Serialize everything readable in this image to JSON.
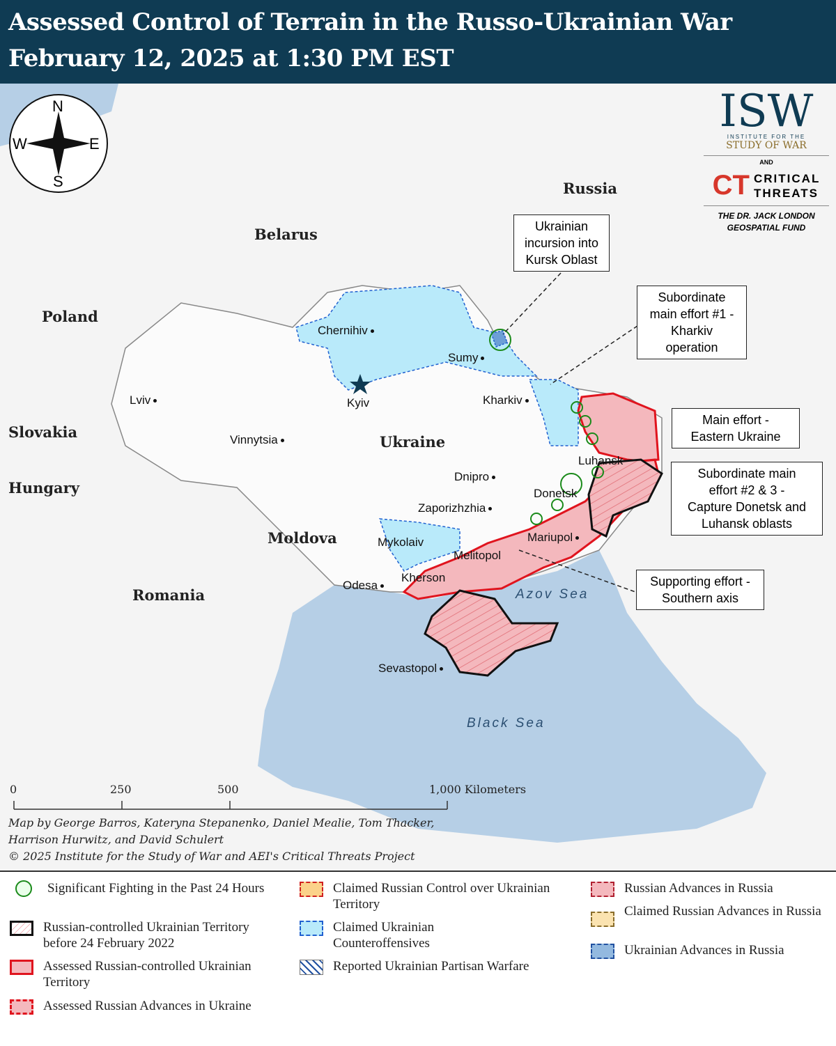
{
  "header": {
    "title": "Assessed Control of Terrain in the Russo-Ukrainian War",
    "date": "February 12, 2025 at 1:30 PM EST"
  },
  "compass": {
    "n": "N",
    "s": "S",
    "e": "E",
    "w": "W"
  },
  "countries": [
    "Russia",
    "Belarus",
    "Poland",
    "Slovakia",
    "Hungary",
    "Moldova",
    "Romania",
    "Ukraine"
  ],
  "cities": [
    "Chernihiv",
    "Kyiv",
    "Sumy",
    "Kharkiv",
    "Lviv",
    "Vinnytsia",
    "Dnipro",
    "Luhansk",
    "Donetsk",
    "Zaporizhzhia",
    "Mariupol",
    "Mykolaiv",
    "Melitopol",
    "Kherson",
    "Odesa",
    "Sevastopol"
  ],
  "seas": {
    "azov": "Azov Sea",
    "black": "Black Sea"
  },
  "callouts": [
    {
      "lines": [
        "Ukrainian",
        "incursion into",
        "Kursk Oblast"
      ]
    },
    {
      "lines": [
        "Subordinate",
        "main effort #1 -",
        "Kharkiv",
        "operation"
      ]
    },
    {
      "lines": [
        "Main effort -",
        "Eastern Ukraine"
      ]
    },
    {
      "lines": [
        "Subordinate main",
        "effort #2 & 3 -",
        "Capture Donetsk and",
        "Luhansk oblasts"
      ]
    },
    {
      "lines": [
        "Supporting effort -",
        "Southern axis"
      ]
    }
  ],
  "scale": {
    "ticks": [
      "0",
      "250",
      "500",
      "1,000 Kilometers"
    ]
  },
  "credits": [
    "Map by George Barros, Kateryna Stepanenko, Daniel Mealie, Tom Thacker,",
    "Harrison Hurwitz, and David Schulert",
    "© 2025 Institute for the Study of War and AEI's Critical Threats Project"
  ],
  "logo": {
    "isw": "ISW",
    "isw_sub1": "INSTITUTE FOR THE",
    "isw_sub2": "STUDY OF WAR",
    "and": "AND",
    "ct1": "CRITICAL",
    "ct2": "THREATS",
    "fund1": "THE DR. JACK LONDON",
    "fund2": "GEOSPATIAL FUND"
  },
  "colors": {
    "header": "#0f3b53",
    "russian_control": "#f4b8bd",
    "russian_border": "#e0141e",
    "ukraine_claimed": "#b9eafa",
    "sea": "#b6cfe6",
    "fighting": "#1a8a1a"
  },
  "legend": [
    {
      "label": "Significant Fighting in the Past 24 Hours",
      "icon": "green-circle"
    },
    {
      "label": "Russian-controlled Ukrainian Territory before 24 February 2022",
      "icon": "black-hatched-box"
    },
    {
      "label": "Assessed Russian-controlled Ukrainian Territory",
      "icon": "red-box"
    },
    {
      "label": "Assessed Russian Advances in Ukraine",
      "icon": "red-dashed-box"
    },
    {
      "label": "Claimed Russian Control over Ukrainian Territory",
      "icon": "orange-dashed-box"
    },
    {
      "label": "Claimed Ukrainian Counteroffensives",
      "icon": "lightblue-dashed-box"
    },
    {
      "label": "Reported Ukrainian Partisan Warfare",
      "icon": "blue-hatched-box"
    },
    {
      "label": "Russian Advances in Russia",
      "icon": "pink-dashed-box"
    },
    {
      "label": "Claimed Russian Advances in Russia",
      "icon": "tan-dashed-box"
    },
    {
      "label": "Ukrainian Advances in Russia",
      "icon": "blue-dashed-box"
    }
  ]
}
